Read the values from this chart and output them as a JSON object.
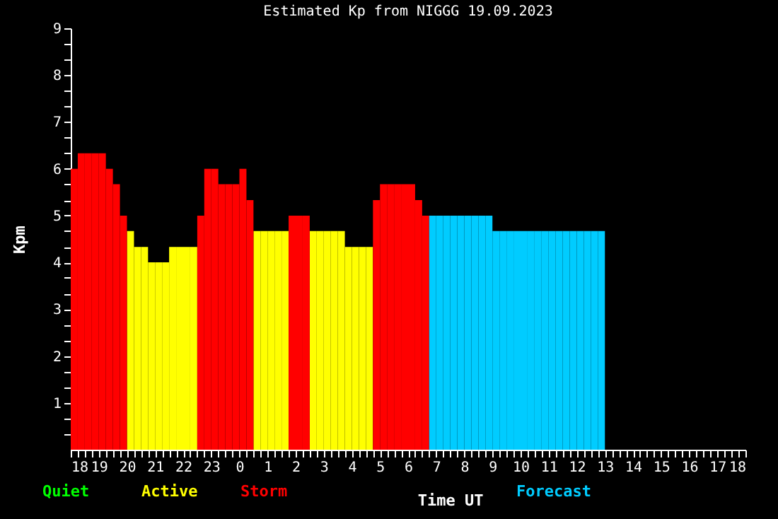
{
  "chart_data": {
    "type": "histogram",
    "title": "Estimated Kp from NIGGG 19.09.2023",
    "xlabel": "Time UT",
    "ylabel": "Kpm",
    "annotations": [
      "Quiet"
    ],
    "bins": [
      "2023-09-18T18:00",
      "2023-09-18T18:15",
      "2023-09-18T18:30",
      "2023-09-18T18:45",
      "2023-09-18T19:00",
      "2023-09-18T19:15",
      "2023-09-18T19:30",
      "2023-09-18T19:45",
      "2023-09-18T20:00",
      "2023-09-18T20:15",
      "2023-09-18T20:30",
      "2023-09-18T20:45",
      "2023-09-18T21:00",
      "2023-09-18T21:15",
      "2023-09-18T21:30",
      "2023-09-18T21:45",
      "2023-09-18T22:00",
      "2023-09-18T22:15",
      "2023-09-18T22:30",
      "2023-09-18T22:45",
      "2023-09-18T23:00",
      "2023-09-18T23:15",
      "2023-09-18T23:30",
      "2023-09-18T23:45",
      "2023-09-19T00:00",
      "2023-09-19T00:15",
      "2023-09-19T00:30",
      "2023-09-19T00:45",
      "2023-09-19T01:00",
      "2023-09-19T01:15",
      "2023-09-19T01:30",
      "2023-09-19T01:45",
      "2023-09-19T02:00",
      "2023-09-19T02:15",
      "2023-09-19T02:30",
      "2023-09-19T02:45",
      "2023-09-19T03:00",
      "2023-09-19T03:15",
      "2023-09-19T03:30",
      "2023-09-19T03:45",
      "2023-09-19T04:00",
      "2023-09-19T04:15",
      "2023-09-19T04:30",
      "2023-09-19T04:45",
      "2023-09-19T05:00",
      "2023-09-19T05:15",
      "2023-09-19T05:30",
      "2023-09-19T05:45",
      "2023-09-19T06:00",
      "2023-09-19T06:15",
      "2023-09-19T06:30",
      "2023-09-19T06:45",
      "2023-09-19T07:00",
      "2023-09-19T07:15",
      "2023-09-19T07:30",
      "2023-09-19T07:45",
      "2023-09-19T08:00",
      "2023-09-19T08:15",
      "2023-09-19T08:30",
      "2023-09-19T08:45",
      "2023-09-19T09:00",
      "2023-09-19T09:15",
      "2023-09-19T09:30",
      "2023-09-19T09:45",
      "2023-09-19T10:00",
      "2023-09-19T10:15",
      "2023-09-19T10:30",
      "2023-09-19T10:45",
      "2023-09-19T11:00",
      "2023-09-19T11:15",
      "2023-09-19T11:30",
      "2023-09-19T11:45",
      "2023-09-19T12:00",
      "2023-09-19T12:15",
      "2023-09-19T12:30",
      "2023-09-19T12:45",
      "2023-09-19T13:00"
    ],
    "series": [
      {
        "name": "Active",
        "color": "#ffff00",
        "values": [
          null,
          null,
          null,
          null,
          null,
          null,
          null,
          null,
          4.67,
          4.33,
          4.33,
          4,
          4,
          4,
          4.33,
          4.33,
          4.33,
          4.33,
          null,
          null,
          null,
          null,
          null,
          null,
          null,
          null,
          4.67,
          4.67,
          4.67,
          4.67,
          4.67,
          null,
          null,
          null,
          4.67,
          4.67,
          4.67,
          4.67,
          4.67,
          4.33,
          4.33,
          4.33,
          4.33,
          null,
          null,
          null,
          null,
          null,
          null,
          null,
          null,
          null,
          null,
          null,
          null,
          null,
          null,
          null,
          null,
          null,
          null,
          null,
          null,
          null,
          null,
          null,
          null,
          null,
          null,
          null,
          null,
          null,
          null,
          null,
          null,
          null
        ]
      },
      {
        "name": "Storm",
        "color": "#ff0000",
        "values": [
          6,
          6.33,
          6.33,
          6.33,
          6.33,
          6,
          5.67,
          5,
          null,
          null,
          null,
          null,
          null,
          null,
          null,
          null,
          null,
          null,
          5,
          6,
          6,
          5.67,
          5.67,
          5.67,
          6,
          5.33,
          null,
          null,
          null,
          null,
          null,
          5,
          5,
          5,
          null,
          null,
          null,
          null,
          null,
          null,
          null,
          null,
          null,
          5.33,
          5.67,
          5.67,
          5.67,
          5.67,
          5.67,
          5.33,
          5,
          null,
          null,
          null,
          null,
          null,
          null,
          null,
          null,
          null,
          null,
          null,
          null,
          null,
          null,
          null,
          null,
          null,
          null,
          null,
          null,
          null,
          null,
          null,
          null,
          null
        ]
      },
      {
        "name": "Forecast",
        "color": "#00ccff",
        "values": [
          null,
          null,
          null,
          null,
          null,
          null,
          null,
          null,
          null,
          null,
          null,
          null,
          null,
          null,
          null,
          null,
          null,
          null,
          null,
          null,
          null,
          null,
          null,
          null,
          null,
          null,
          null,
          null,
          null,
          null,
          null,
          null,
          null,
          null,
          null,
          null,
          null,
          null,
          null,
          null,
          null,
          null,
          null,
          null,
          null,
          null,
          null,
          null,
          null,
          null,
          null,
          5,
          5,
          5,
          5,
          5,
          5,
          5,
          5,
          5,
          4.67,
          4.67,
          4.67,
          4.67,
          4.67,
          4.67,
          4.67,
          4.67,
          4.67,
          4.67,
          4.67,
          4.67,
          4.67,
          4.67,
          4.67,
          4.67
        ]
      }
    ],
    "xlim": [
      "2023-09-18T18:00",
      "2023-09-19T18:00"
    ],
    "xticks": [
      {
        "value": "2023-09-18T18:00",
        "label": "18"
      },
      {
        "value": "2023-09-18T18:15",
        "label": null
      },
      {
        "value": "2023-09-18T18:30",
        "label": null
      },
      {
        "value": "2023-09-18T18:45",
        "label": null
      },
      {
        "value": "2023-09-18T19:00",
        "label": "19"
      },
      {
        "value": "2023-09-18T19:15",
        "label": null
      },
      {
        "value": "2023-09-18T19:30",
        "label": null
      },
      {
        "value": "2023-09-18T19:45",
        "label": null
      },
      {
        "value": "2023-09-18T20:00",
        "label": "20"
      },
      {
        "value": "2023-09-18T20:15",
        "label": null
      },
      {
        "value": "2023-09-18T20:30",
        "label": null
      },
      {
        "value": "2023-09-18T20:45",
        "label": null
      },
      {
        "value": "2023-09-18T21:00",
        "label": "21"
      },
      {
        "value": "2023-09-18T21:15",
        "label": null
      },
      {
        "value": "2023-09-18T21:30",
        "label": null
      },
      {
        "value": "2023-09-18T21:45",
        "label": null
      },
      {
        "value": "2023-09-18T22:00",
        "label": "22"
      },
      {
        "value": "2023-09-18T22:15",
        "label": null
      },
      {
        "value": "2023-09-18T22:30",
        "label": null
      },
      {
        "value": "2023-09-18T22:45",
        "label": null
      },
      {
        "value": "2023-09-18T23:00",
        "label": "23"
      },
      {
        "value": "2023-09-18T23:15",
        "label": null
      },
      {
        "value": "2023-09-18T23:30",
        "label": null
      },
      {
        "value": "2023-09-18T23:45",
        "label": null
      },
      {
        "value": "2023-09-19T00:00",
        "label": "0"
      },
      {
        "value": "2023-09-19T00:15",
        "label": null
      },
      {
        "value": "2023-09-19T00:30",
        "label": null
      },
      {
        "value": "2023-09-19T00:45",
        "label": null
      },
      {
        "value": "2023-09-19T01:00",
        "label": "1"
      },
      {
        "value": "2023-09-19T01:15",
        "label": null
      },
      {
        "value": "2023-09-19T01:30",
        "label": null
      },
      {
        "value": "2023-09-19T01:45",
        "label": null
      },
      {
        "value": "2023-09-19T02:00",
        "label": "2"
      },
      {
        "value": "2023-09-19T02:15",
        "label": null
      },
      {
        "value": "2023-09-19T02:30",
        "label": null
      },
      {
        "value": "2023-09-19T02:45",
        "label": null
      },
      {
        "value": "2023-09-19T03:00",
        "label": "3"
      },
      {
        "value": "2023-09-19T03:15",
        "label": null
      },
      {
        "value": "2023-09-19T03:30",
        "label": null
      },
      {
        "value": "2023-09-19T03:45",
        "label": null
      },
      {
        "value": "2023-09-19T04:00",
        "label": "4"
      },
      {
        "value": "2023-09-19T04:15",
        "label": null
      },
      {
        "value": "2023-09-19T04:30",
        "label": null
      },
      {
        "value": "2023-09-19T04:45",
        "label": null
      },
      {
        "value": "2023-09-19T05:00",
        "label": "5"
      },
      {
        "value": "2023-09-19T05:15",
        "label": null
      },
      {
        "value": "2023-09-19T05:30",
        "label": null
      },
      {
        "value": "2023-09-19T05:45",
        "label": null
      },
      {
        "value": "2023-09-19T06:00",
        "label": "6"
      },
      {
        "value": "2023-09-19T06:15",
        "label": null
      },
      {
        "value": "2023-09-19T06:30",
        "label": null
      },
      {
        "value": "2023-09-19T06:45",
        "label": null
      },
      {
        "value": "2023-09-19T07:00",
        "label": "7"
      },
      {
        "value": "2023-09-19T07:15",
        "label": null
      },
      {
        "value": "2023-09-19T07:30",
        "label": null
      },
      {
        "value": "2023-09-19T07:45",
        "label": null
      },
      {
        "value": "2023-09-19T08:00",
        "label": "8"
      },
      {
        "value": "2023-09-19T08:15",
        "label": null
      },
      {
        "value": "2023-09-19T08:30",
        "label": null
      },
      {
        "value": "2023-09-19T08:45",
        "label": null
      },
      {
        "value": "2023-09-19T09:00",
        "label": "9"
      },
      {
        "value": "2023-09-19T09:15",
        "label": null
      },
      {
        "value": "2023-09-19T09:30",
        "label": null
      },
      {
        "value": "2023-09-19T09:45",
        "label": null
      },
      {
        "value": "2023-09-19T10:00",
        "label": "10"
      },
      {
        "value": "2023-09-19T10:15",
        "label": null
      },
      {
        "value": "2023-09-19T10:30",
        "label": null
      },
      {
        "value": "2023-09-19T10:45",
        "label": null
      },
      {
        "value": "2023-09-19T11:00",
        "label": "11"
      },
      {
        "value": "2023-09-19T11:15",
        "label": null
      },
      {
        "value": "2023-09-19T11:30",
        "label": null
      },
      {
        "value": "2023-09-19T11:45",
        "label": null
      },
      {
        "value": "2023-09-19T12:00",
        "label": "12"
      },
      {
        "value": "2023-09-19T12:15",
        "label": null
      },
      {
        "value": "2023-09-19T12:30",
        "label": null
      },
      {
        "value": "2023-09-19T12:45",
        "label": null
      },
      {
        "value": "2023-09-19T13:00",
        "label": "13"
      },
      {
        "value": "2023-09-19T13:15",
        "label": null
      },
      {
        "value": "2023-09-19T13:30",
        "label": null
      },
      {
        "value": "2023-09-19T13:45",
        "label": null
      },
      {
        "value": "2023-09-19T14:00",
        "label": "14"
      },
      {
        "value": "2023-09-19T14:15",
        "label": null
      },
      {
        "value": "2023-09-19T14:30",
        "label": null
      },
      {
        "value": "2023-09-19T14:45",
        "label": null
      },
      {
        "value": "2023-09-19T15:00",
        "label": "15"
      },
      {
        "value": "2023-09-19T15:15",
        "label": null
      },
      {
        "value": "2023-09-19T15:30",
        "label": null
      },
      {
        "value": "2023-09-19T15:45",
        "label": null
      },
      {
        "value": "2023-09-19T16:00",
        "label": "16"
      },
      {
        "value": "2023-09-19T16:15",
        "label": null
      },
      {
        "value": "2023-09-19T16:30",
        "label": null
      },
      {
        "value": "2023-09-19T16:45",
        "label": null
      },
      {
        "value": "2023-09-19T17:00",
        "label": "17"
      },
      {
        "value": "2023-09-19T17:15",
        "label": null
      },
      {
        "value": "2023-09-19T17:30",
        "label": null
      },
      {
        "value": "2023-09-19T17:45",
        "label": null
      },
      {
        "value": "2023-09-19T18:00",
        "label": "18"
      }
    ],
    "ylim": [
      0,
      9
    ],
    "yticks": [
      {
        "value": 0.33,
        "label": null
      },
      {
        "value": 0.67,
        "label": null
      },
      1,
      {
        "value": 1.33,
        "label": null
      },
      {
        "value": 1.67,
        "label": null
      },
      2,
      {
        "value": 2.33,
        "label": null
      },
      {
        "value": 2.67,
        "label": null
      },
      3,
      {
        "value": 3.33,
        "label": null
      },
      {
        "value": 3.67,
        "label": null
      },
      4,
      {
        "value": 4.33,
        "label": null
      },
      {
        "value": 4.67,
        "label": null
      },
      5,
      {
        "value": 5.33,
        "label": null
      },
      {
        "value": 5.67,
        "label": null
      },
      6,
      {
        "value": 6.33,
        "label": null
      },
      {
        "value": 6.67,
        "label": null
      },
      7,
      {
        "value": 7.33,
        "label": null
      },
      {
        "value": 7.67,
        "label": null
      },
      8,
      {
        "value": 8.33,
        "label": null
      },
      {
        "value": 8.67,
        "label": null
      },
      9
    ],
    "grid": false,
    "legend": "bottom"
  }
}
